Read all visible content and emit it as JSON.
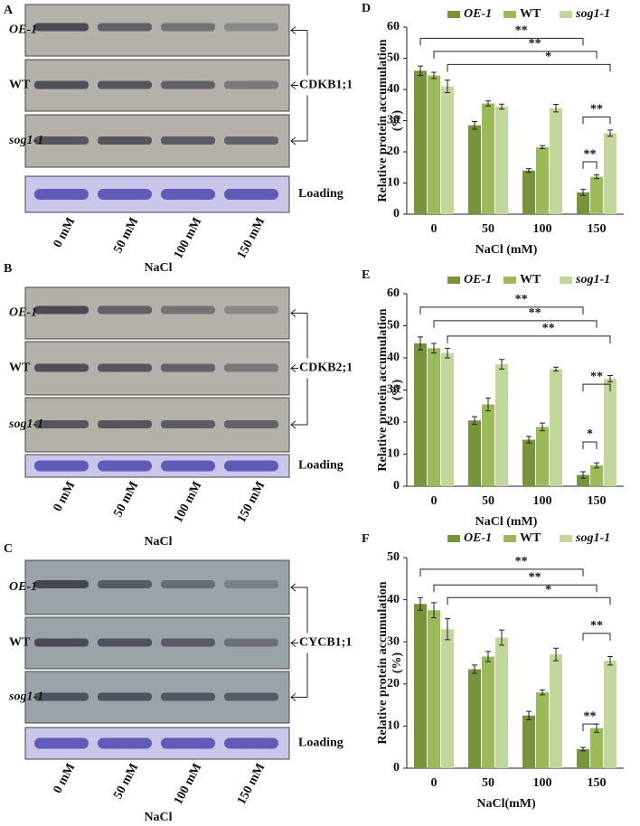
{
  "blots": [
    {
      "label": "A",
      "rows": [
        "OE-1",
        "WT",
        "sog1-1"
      ],
      "protein": "CDKB1;1",
      "loading": "Loading",
      "lanes": [
        "0 mM",
        "50 mM",
        "100 mM",
        "150 mM"
      ],
      "xlabel": "NaCl"
    },
    {
      "label": "B",
      "rows": [
        "OE-1",
        "WT",
        "sog1-1"
      ],
      "protein": "CDKB2;1",
      "loading": "Loading",
      "lanes": [
        "0 mM",
        "50 mM",
        "100 mM",
        "150 mM"
      ],
      "xlabel": "NaCl"
    },
    {
      "label": "C",
      "rows": [
        "OE-1",
        "WT",
        "sog1-1"
      ],
      "protein": "CYCB1;1",
      "loading": "Loading",
      "lanes": [
        "0 mM",
        "50 mM",
        "100 mM",
        "150 mM"
      ],
      "xlabel": "NaCl"
    }
  ],
  "chart_data": [
    {
      "type": "bar",
      "panel_label": "D",
      "ylabel": [
        "Relative protein accumulation",
        "(%)"
      ],
      "xlabel": "NaCl (mM)",
      "categories": [
        "0",
        "50",
        "100",
        "150"
      ],
      "ylim": [
        0,
        60
      ],
      "yticks": [
        0,
        10,
        20,
        30,
        40,
        50,
        60
      ],
      "series": [
        {
          "name": "OE-1",
          "color": "#77933c",
          "values": [
            46,
            28.5,
            14,
            7
          ],
          "errors": [
            1.5,
            1.2,
            0.6,
            1
          ]
        },
        {
          "name": "WT",
          "color": "#9bbb59",
          "values": [
            44.5,
            35.5,
            21.5,
            12
          ],
          "errors": [
            1,
            0.8,
            0.5,
            0.6
          ]
        },
        {
          "name": "sog1-1",
          "color": "#c3d69b",
          "values": [
            41,
            34.5,
            34,
            26
          ],
          "errors": [
            2,
            0.8,
            1.2,
            1
          ]
        }
      ],
      "annotations": [
        "**",
        "**",
        "*",
        "**",
        "**"
      ]
    },
    {
      "type": "bar",
      "panel_label": "E",
      "ylabel": [
        "Relative protein accumulation",
        "(%)"
      ],
      "xlabel": "NaCl (mM)",
      "categories": [
        "0",
        "50",
        "100",
        "150"
      ],
      "ylim": [
        0,
        60
      ],
      "yticks": [
        0,
        10,
        20,
        30,
        40,
        50,
        60
      ],
      "series": [
        {
          "name": "OE-1",
          "color": "#77933c",
          "values": [
            44.5,
            20.5,
            14.5,
            3.5
          ],
          "errors": [
            2,
            1.2,
            1,
            1
          ]
        },
        {
          "name": "WT",
          "color": "#9bbb59",
          "values": [
            43,
            25.5,
            18.5,
            6.5
          ],
          "errors": [
            1.5,
            2,
            1.2,
            0.8
          ]
        },
        {
          "name": "sog1-1",
          "color": "#c3d69b",
          "values": [
            41.5,
            38,
            36.5,
            33.5
          ],
          "errors": [
            1.5,
            1.5,
            0.6,
            1
          ]
        }
      ],
      "annotations": [
        "**",
        "**",
        "**",
        "**",
        "*"
      ]
    },
    {
      "type": "bar",
      "panel_label": "F",
      "ylabel": [
        "Relative protein accumulation",
        "(%)"
      ],
      "xlabel": "NaCl(mM)",
      "categories": [
        "0",
        "50",
        "100",
        "150"
      ],
      "ylim": [
        0,
        50
      ],
      "yticks": [
        0,
        10,
        20,
        30,
        40,
        50
      ],
      "series": [
        {
          "name": "OE-1",
          "color": "#77933c",
          "values": [
            39,
            23.5,
            12.5,
            4.5
          ],
          "errors": [
            1.5,
            1,
            1,
            0.4
          ]
        },
        {
          "name": "WT",
          "color": "#9bbb59",
          "values": [
            37.5,
            26.5,
            18,
            9.5
          ],
          "errors": [
            1.8,
            1.2,
            0.6,
            1
          ]
        },
        {
          "name": "sog1-1",
          "color": "#c3d69b",
          "values": [
            33,
            31,
            27,
            25.5
          ],
          "errors": [
            2.5,
            1.8,
            1.5,
            1
          ]
        }
      ],
      "annotations": [
        "**",
        "**",
        "*",
        "**",
        "**"
      ]
    }
  ]
}
